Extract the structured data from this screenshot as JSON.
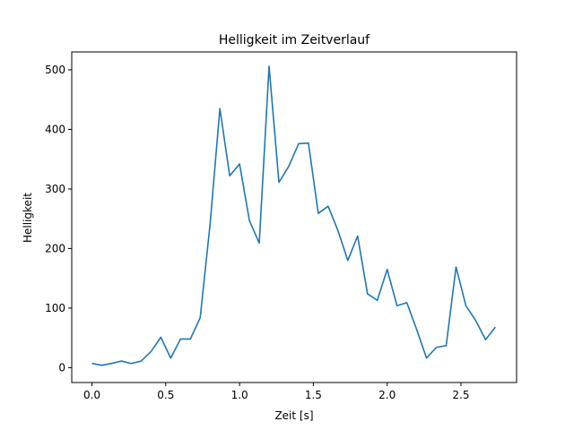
{
  "chart_data": {
    "type": "line",
    "title": "Helligkeit im Zeitverlauf",
    "xlabel": "Zeit [s]",
    "ylabel": "Helligkeit",
    "xlim": [
      -0.137,
      2.877
    ],
    "ylim": [
      -25,
      530
    ],
    "xticks": [
      0.0,
      0.5,
      1.0,
      1.5,
      2.0,
      2.5
    ],
    "xtick_labels": [
      "0.0",
      "0.5",
      "1.0",
      "1.5",
      "2.0",
      "2.5"
    ],
    "yticks": [
      0,
      100,
      200,
      300,
      400,
      500
    ],
    "ytick_labels": [
      "0",
      "100",
      "200",
      "300",
      "400",
      "500"
    ],
    "grid": false,
    "color": "#1f77b4",
    "series": [
      {
        "x": [
          0.0,
          0.0667,
          0.1333,
          0.2,
          0.2667,
          0.3333,
          0.4,
          0.4667,
          0.5333,
          0.6,
          0.6667,
          0.7333,
          0.8,
          0.8667,
          0.9333,
          1.0,
          1.0667,
          1.1333,
          1.2,
          1.2667,
          1.3333,
          1.4,
          1.4667,
          1.5333,
          1.6,
          1.6667,
          1.7333,
          1.8,
          1.8667,
          1.9333,
          2.0,
          2.0667,
          2.1333,
          2.2,
          2.2667,
          2.3333,
          2.4,
          2.4667,
          2.5333,
          2.6,
          2.6667,
          2.7333
        ],
        "values": [
          7,
          4,
          7,
          11,
          7,
          11,
          27,
          51,
          16,
          48,
          48,
          84,
          240,
          435,
          322,
          342,
          247,
          209,
          506,
          311,
          338,
          376,
          377,
          259,
          271,
          230,
          180,
          221,
          124,
          113,
          165,
          104,
          109,
          64,
          16,
          34,
          37,
          169,
          104,
          79,
          47,
          68
        ]
      }
    ]
  }
}
